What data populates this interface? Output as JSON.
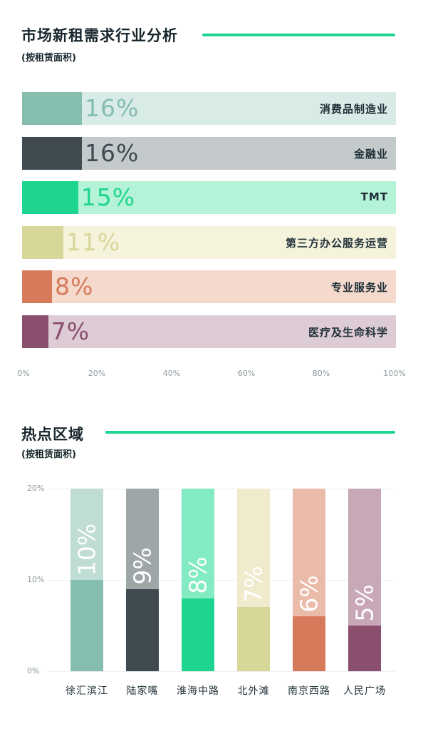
{
  "section1": {
    "title": "市场新租需求行业分析",
    "subtitle": "(按租赁面积)"
  },
  "section2": {
    "title": "热点区域",
    "subtitle": "(按租赁面积)"
  },
  "chart_data": [
    {
      "type": "bar",
      "orientation": "horizontal",
      "categories": [
        "消费品制造业",
        "金融业",
        "TMT",
        "第三方办公服务运营",
        "专业服务业",
        "医疗及生命科学"
      ],
      "values": [
        16,
        16,
        15,
        11,
        8,
        7
      ],
      "value_labels": [
        "16%",
        "16%",
        "15%",
        "11%",
        "8%",
        "7%"
      ],
      "xlim": [
        0,
        100
      ],
      "xticks": [
        "0%",
        "20%",
        "40%",
        "60%",
        "80%",
        "100%"
      ],
      "colors": [
        "#85bdaf",
        "#3f4b51",
        "#1ed58f",
        "#d8d79a",
        "#d77a5c",
        "#8a4f6e"
      ],
      "track_colors": [
        "#d9ebe6",
        "#c4cacb",
        "#b4f3d8",
        "#f5f3dc",
        "#f5d9cd",
        "#ddcbd6"
      ]
    },
    {
      "type": "bar",
      "orientation": "vertical",
      "categories": [
        "徐汇滨江",
        "陆家嘴",
        "淮海中路",
        "北外滩",
        "南京西路",
        "人民广场"
      ],
      "values": [
        10,
        9,
        8,
        7,
        6,
        5
      ],
      "value_labels": [
        "10%",
        "9%",
        "8%",
        "7%",
        "6%",
        "5%"
      ],
      "ylim": [
        0,
        20
      ],
      "yticks": [
        "0%",
        "10%",
        "20%"
      ],
      "grid": true,
      "colors": [
        "#85bdaf",
        "#3f4b51",
        "#1ed58f",
        "#d8d79a",
        "#d77a5c",
        "#8a4f6e"
      ],
      "track_colors": [
        "#bfdcd5",
        "#9fa6a8",
        "#82ebc1",
        "#efebcc",
        "#ebbba9",
        "#c8a7b7"
      ]
    }
  ]
}
